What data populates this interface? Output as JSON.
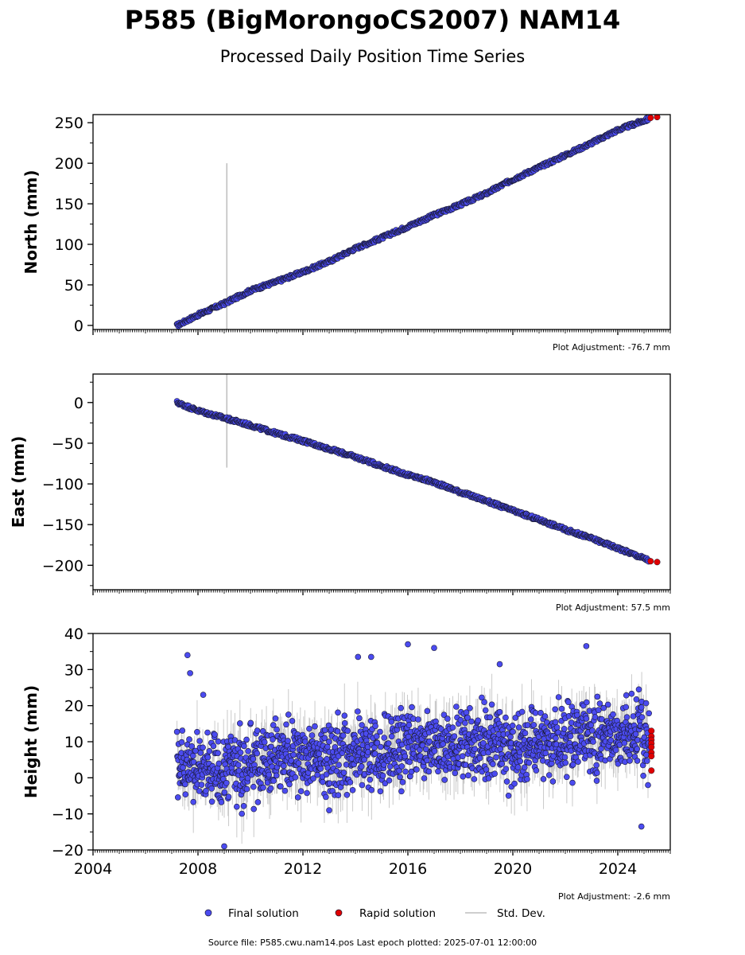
{
  "header": {
    "title": "P585 (BigMorongoCS2007) NAM14",
    "subtitle": "Processed Daily Position Time Series"
  },
  "legend": {
    "final_label": "Final solution",
    "rapid_label": "Rapid solution",
    "stddev_label": "Std. Dev."
  },
  "footer": {
    "source": "Source file: P585.cwu.nam14.pos  Last epoch plotted: 2025-07-01 12:00:00"
  },
  "colors": {
    "final": "#4b4bf0",
    "rapid": "#e00000",
    "stddev": "#bdbdbd",
    "edge": "#1a1a33"
  },
  "chart_data": [
    {
      "type": "scatter",
      "ylabel": "North (mm)",
      "adjustment": "Plot Adjustment: -76.7 mm",
      "xlim": [
        2004,
        2026
      ],
      "ylim": [
        -5,
        260
      ],
      "yticks": [
        0,
        50,
        100,
        150,
        200,
        250
      ],
      "yticks_text": [
        "0",
        "50",
        "100",
        "150",
        "200",
        "250"
      ],
      "series": [
        {
          "name": "Final solution",
          "x": [
            2007.2,
            2008.0,
            2009.0,
            2010.0,
            2011.0,
            2012.0,
            2013.0,
            2014.0,
            2015.0,
            2016.0,
            2017.0,
            2018.0,
            2019.0,
            2020.0,
            2021.0,
            2022.0,
            2023.0,
            2024.0,
            2025.2
          ],
          "y": [
            0,
            13,
            27,
            43,
            54,
            66,
            79,
            95,
            108,
            122,
            136,
            149,
            163,
            180,
            195,
            210,
            225,
            241,
            255
          ]
        },
        {
          "name": "Rapid solution",
          "x": [
            2025.25,
            2025.5
          ],
          "y": [
            256,
            257
          ]
        }
      ],
      "stddev_spike": {
        "x": 2009.1,
        "y_low": -5,
        "y_high": 200
      }
    },
    {
      "type": "scatter",
      "ylabel": "East (mm)",
      "adjustment": "Plot Adjustment: 57.5 mm",
      "xlim": [
        2004,
        2026
      ],
      "ylim": [
        -230,
        35
      ],
      "yticks": [
        0,
        -50,
        -100,
        -150,
        -200
      ],
      "yticks_text": [
        "0",
        "−50",
        "−100",
        "−150",
        "−200"
      ],
      "series": [
        {
          "name": "Final solution",
          "x": [
            2007.2,
            2008.0,
            2009.0,
            2010.0,
            2011.0,
            2012.0,
            2013.0,
            2014.0,
            2015.0,
            2016.0,
            2017.0,
            2018.0,
            2019.0,
            2020.0,
            2021.0,
            2022.0,
            2023.0,
            2024.0,
            2025.2
          ],
          "y": [
            0,
            -10,
            -19,
            -28,
            -38,
            -47,
            -57,
            -67,
            -78,
            -89,
            -98,
            -110,
            -121,
            -133,
            -144,
            -156,
            -167,
            -179,
            -194
          ]
        },
        {
          "name": "Rapid solution",
          "x": [
            2025.25,
            2025.5
          ],
          "y": [
            -195,
            -196
          ]
        }
      ],
      "stddev_spike": {
        "x": 2009.1,
        "y_low": -80,
        "y_high": 35
      }
    },
    {
      "type": "scatter",
      "ylabel": "Height (mm)",
      "adjustment": "Plot Adjustment: -2.6 mm",
      "xlim": [
        2004,
        2026
      ],
      "ylim": [
        -20,
        40
      ],
      "yticks": [
        -20,
        -10,
        0,
        10,
        20,
        30,
        40
      ],
      "yticks_text": [
        "−20",
        "−10",
        "0",
        "10",
        "20",
        "30",
        "40"
      ],
      "xticks": [
        2004,
        2008,
        2012,
        2016,
        2020,
        2024
      ],
      "xticks_text": [
        "2004",
        "2008",
        "2012",
        "2016",
        "2020",
        "2024"
      ],
      "series": [
        {
          "name": "Final solution",
          "x": [
            2007.2,
            2008.0,
            2009.0,
            2010.0,
            2011.0,
            2012.0,
            2013.0,
            2014.0,
            2015.0,
            2016.0,
            2017.0,
            2018.0,
            2019.0,
            2020.0,
            2021.0,
            2022.0,
            2023.0,
            2024.0,
            2025.2
          ],
          "y": [
            3,
            2,
            1,
            4,
            5,
            6,
            5,
            7,
            6,
            9,
            8,
            9,
            9,
            8,
            10,
            11,
            11,
            10,
            12
          ],
          "scatter_range": 9
        },
        {
          "name": "Rapid solution",
          "x": [
            2025.28,
            2025.28,
            2025.28,
            2025.28,
            2025.28,
            2025.28,
            2025.28,
            2025.28
          ],
          "y": [
            13,
            11.5,
            10.5,
            9.5,
            8.5,
            7,
            6,
            2
          ]
        }
      ],
      "outliers": {
        "x": [
          2007.6,
          2007.7,
          2008.2,
          2014.1,
          2014.6,
          2016.0,
          2017.0,
          2019.5,
          2022.8,
          2024.9,
          2009.0,
          2013.0
        ],
        "y": [
          34,
          29,
          23,
          33.5,
          33.5,
          37,
          36,
          31.5,
          36.5,
          -13.5,
          -19,
          -9
        ]
      }
    }
  ]
}
